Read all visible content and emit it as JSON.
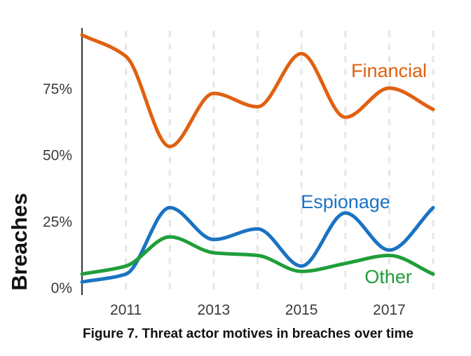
{
  "caption": "Figure 7. Threat actor motives in breaches over time",
  "chart_data": {
    "type": "line",
    "title": "",
    "xlabel": "",
    "ylabel": "Breaches",
    "xlim": [
      2010,
      2018
    ],
    "ylim": [
      0,
      100
    ],
    "y_ticks": [
      {
        "value": 0,
        "label": "0%"
      },
      {
        "value": 25,
        "label": "25%"
      },
      {
        "value": 50,
        "label": "50%"
      },
      {
        "value": 75,
        "label": "75%"
      }
    ],
    "x_ticks": [
      {
        "value": 2011,
        "label": "2011"
      },
      {
        "value": 2013,
        "label": "2013"
      },
      {
        "value": 2015,
        "label": "2015"
      },
      {
        "value": 2017,
        "label": "2017"
      }
    ],
    "grid": "vertical dashed at each year",
    "legend": "direct labels next to lines",
    "series": [
      {
        "name": "Financial",
        "color": "#e0600f",
        "x": [
          2010,
          2011,
          2012,
          2013,
          2014,
          2015,
          2016,
          2017,
          2018
        ],
        "values": [
          95,
          87,
          53,
          73,
          68,
          88,
          64,
          75,
          67
        ]
      },
      {
        "name": "Espionage",
        "color": "#1a73c2",
        "x": [
          2010,
          2011,
          2012,
          2013,
          2014,
          2015,
          2016,
          2017,
          2018
        ],
        "values": [
          2,
          5,
          30,
          18,
          22,
          8,
          28,
          14,
          30
        ]
      },
      {
        "name": "Other",
        "color": "#1f9e3a",
        "x": [
          2010,
          2011,
          2012,
          2013,
          2014,
          2015,
          2016,
          2017,
          2018
        ],
        "values": [
          5,
          8,
          19,
          13,
          12,
          6,
          9,
          12,
          5
        ]
      }
    ]
  }
}
